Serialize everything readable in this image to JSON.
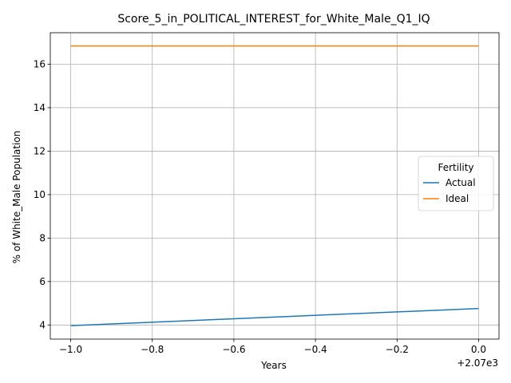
{
  "chart_data": {
    "type": "line",
    "title": "Score_5_in_POLITICAL_INTEREST_for_White_Male_Q1_IQ",
    "xlabel": "Years",
    "ylabel": "% of White_Male Population",
    "x_offset_label": "+2.07e3",
    "x": [
      -1.0,
      0.0
    ],
    "xlim": [
      -1.05,
      0.05
    ],
    "ylim": [
      3.35,
      17.45
    ],
    "x_ticks": [
      -1.0,
      -0.8,
      -0.6,
      -0.4,
      -0.2,
      0.0
    ],
    "x_tick_labels": [
      "−1.0",
      "−0.8",
      "−0.6",
      "−0.4",
      "−0.2",
      "0.0"
    ],
    "y_ticks": [
      4,
      6,
      8,
      10,
      12,
      14,
      16
    ],
    "y_tick_labels": [
      "4",
      "6",
      "8",
      "10",
      "12",
      "14",
      "16"
    ],
    "grid": true,
    "legend": {
      "title": "Fertility",
      "placement": "center-right"
    },
    "series": [
      {
        "name": "Actual",
        "values": [
          3.97,
          4.76
        ],
        "color": "#1f77b4"
      },
      {
        "name": "Ideal",
        "values": [
          16.84,
          16.84
        ],
        "color": "#ff7f0e"
      }
    ]
  }
}
